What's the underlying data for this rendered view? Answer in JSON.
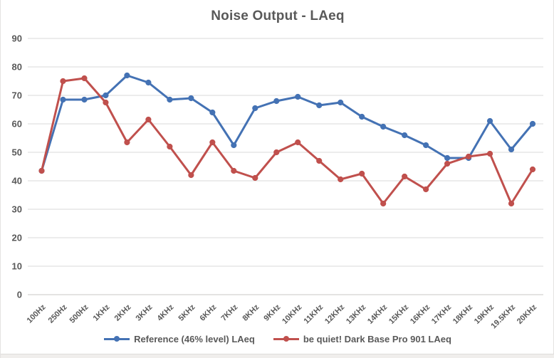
{
  "page": {
    "background": "#ffffff",
    "edge_border_color": "#e4e2e1",
    "footer_bar_color": "#f0eeec"
  },
  "chart_data": {
    "type": "line",
    "title": "Noise Output - LAeq",
    "categories": [
      "100Hz",
      "250Hz",
      "500Hz",
      "1KHz",
      "2KHz",
      "3KHz",
      "4KHz",
      "5KHz",
      "6KHz",
      "7KHz",
      "8KHz",
      "9KHz",
      "10KHz",
      "11KHz",
      "12KHz",
      "13KHz",
      "14KHz",
      "15KHz",
      "16KHz",
      "17KHz",
      "18KHz",
      "19KHz",
      "19.5KHz",
      "20KHz"
    ],
    "series": [
      {
        "name": "Reference (46% level) LAeq",
        "color": "#4472B4",
        "values": [
          43.5,
          68.5,
          68.5,
          70,
          77,
          74.5,
          68.5,
          69,
          64,
          52.5,
          65.5,
          68,
          69.5,
          66.5,
          67.5,
          62.5,
          59,
          56,
          52.5,
          48,
          48,
          61,
          51,
          60
        ]
      },
      {
        "name": "be quiet! Dark Base Pro 901 LAeq",
        "color": "#C0504D",
        "values": [
          43.5,
          75,
          76,
          67.5,
          53.5,
          61.5,
          52,
          42,
          53.5,
          43.5,
          41,
          50,
          53.5,
          47,
          40.5,
          42.5,
          32,
          41.5,
          37,
          46,
          48.5,
          49.5,
          32,
          44
        ]
      }
    ],
    "xlabel": "",
    "ylabel": "",
    "ylim": [
      0,
      90
    ],
    "y_ticks": [
      0,
      10,
      20,
      30,
      40,
      50,
      60,
      70,
      80,
      90
    ],
    "grid": true,
    "legend_position": "bottom",
    "text_color": "#595959",
    "grid_color": "#d9d9d9",
    "axis_line_color": "#c9c7c5"
  }
}
